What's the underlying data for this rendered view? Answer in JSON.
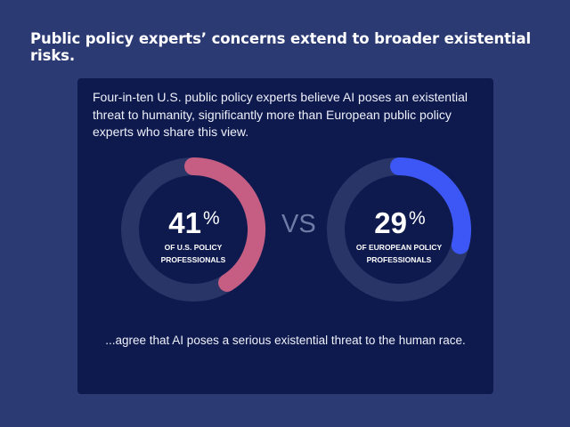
{
  "headline": "Public policy experts’ concerns extend to broader existential risks.",
  "intro": "Four-in-ten U.S. public policy experts believe AI poses an existential threat to humanity, significantly more than European public policy experts who share this view.",
  "vs_label": "VS",
  "outro": "...agree that AI poses a serious existential threat to the human race.",
  "colors": {
    "page_background": "#2c3a74",
    "card_background": "#0e1a4e",
    "track": "#283566",
    "us_arc": "#c55e82",
    "eu_arc": "#3c57f5"
  },
  "chart_data": [
    {
      "type": "pie",
      "title": "",
      "value": 41,
      "max": 100,
      "number": "41",
      "unit": "%",
      "label_lines": [
        "OF U.S. POLICY",
        "PROFESSIONALS"
      ],
      "color": "#c55e82",
      "track_color": "#283566"
    },
    {
      "type": "pie",
      "title": "",
      "value": 29,
      "max": 100,
      "number": "29",
      "unit": "%",
      "label_lines": [
        "OF EUROPEAN POLICY",
        "PROFESSIONALS"
      ],
      "color": "#3c57f5",
      "track_color": "#283566"
    }
  ]
}
